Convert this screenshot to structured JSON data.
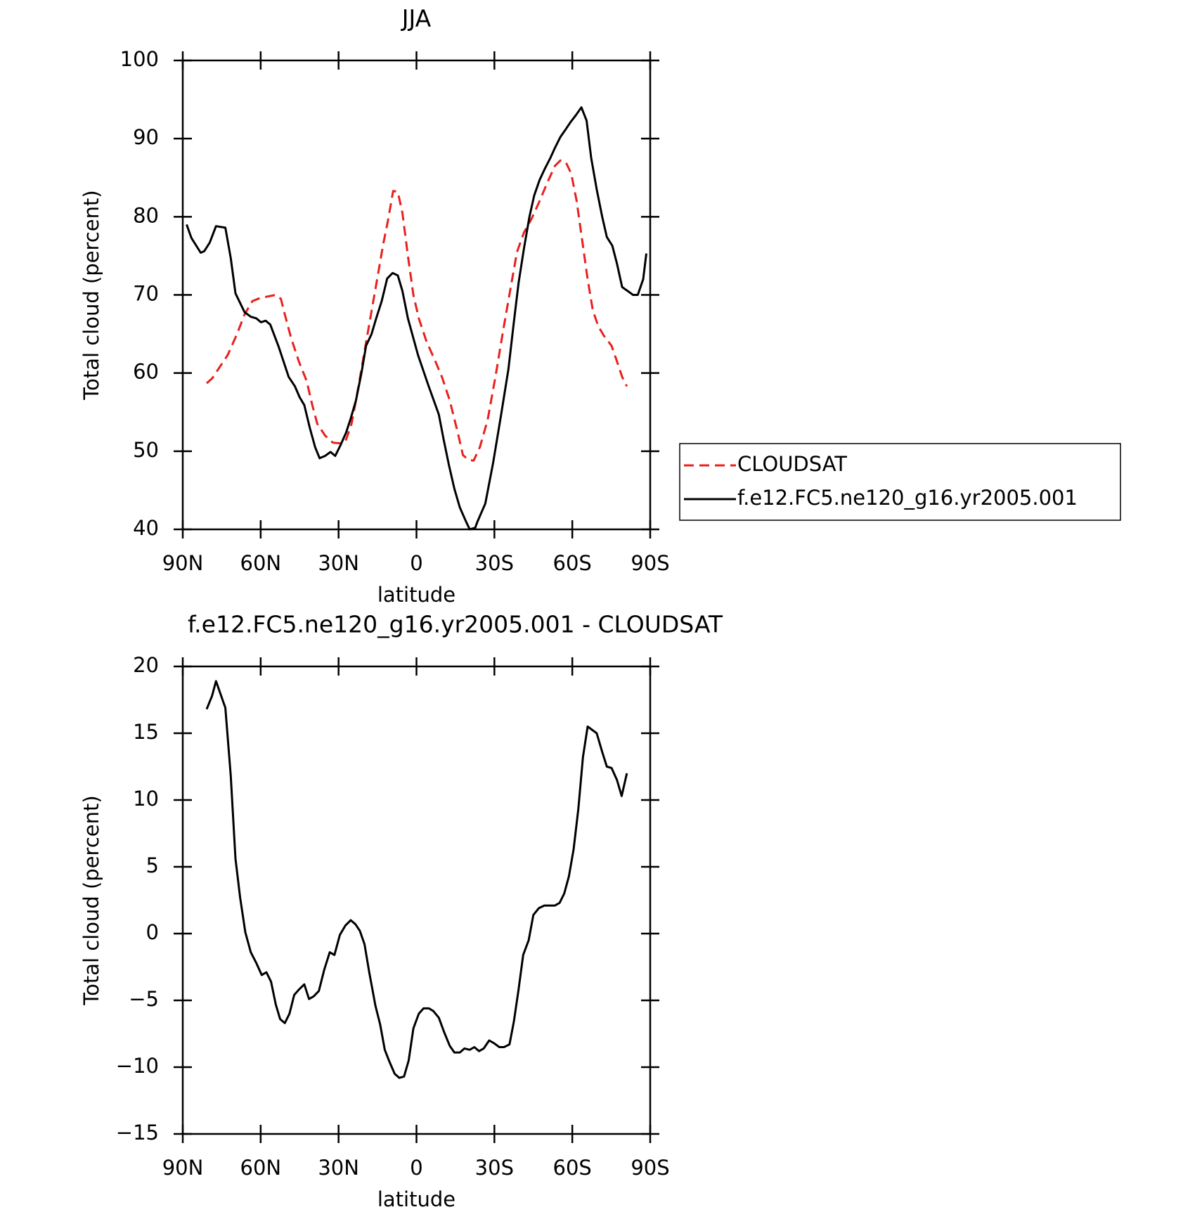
{
  "chart_data": [
    {
      "type": "line",
      "title": "JJA",
      "xlabel": "latitude",
      "ylabel": "Total cloud (percent)",
      "xlim": [
        90,
        -90
      ],
      "xticks": [
        {
          "value": 90,
          "label": "90N"
        },
        {
          "value": 60,
          "label": "60N"
        },
        {
          "value": 30,
          "label": "30N"
        },
        0,
        {
          "value": -30,
          "label": "30S"
        },
        {
          "value": -60,
          "label": "60S"
        },
        {
          "value": -90,
          "label": "90S"
        }
      ],
      "ylim": [
        40,
        100
      ],
      "yticks": [
        40,
        50,
        60,
        70,
        80,
        90,
        100
      ],
      "legend": "right",
      "series": [
        {
          "name": "CLOUDSAT",
          "color": "#e8201e",
          "dash": true,
          "x": [
            80.8,
            78.7,
            76.3,
            72.7,
            69.1,
            66.2,
            63.2,
            60.2,
            57.2,
            54.2,
            52.2,
            50.7,
            48.3,
            45.3,
            42.3,
            40.2,
            38.2,
            35.2,
            32.2,
            29.2,
            27.1,
            25.0,
            23.3,
            21.2,
            19.1,
            17.0,
            14.9,
            12.8,
            11.0,
            9.0,
            7.2,
            5.4,
            3.3,
            1.2,
            -0.9,
            -3.9,
            -6.9,
            -9.8,
            -12.8,
            -15.8,
            -17.9,
            -20.0,
            -22.0,
            -24.4,
            -27.4,
            -30.4,
            -33.4,
            -36.3,
            -38.7,
            -41.4,
            -44.4,
            -47.4,
            -50.3,
            -53.3,
            -55.4,
            -57.5,
            -59.6,
            -61.7,
            -63.8,
            -65.9,
            -67.9,
            -70.0,
            -72.1,
            -75.1,
            -77.2,
            -79.2,
            -81.0
          ],
          "values": [
            58.7,
            59.3,
            60.5,
            62.3,
            65.0,
            67.5,
            69.2,
            69.6,
            69.8,
            70.0,
            69.5,
            67.5,
            64.5,
            61.5,
            59.0,
            56.0,
            53.5,
            52.0,
            51.1,
            51.0,
            51.5,
            53.5,
            56.5,
            60.5,
            64.5,
            68.5,
            72.5,
            76.5,
            79.5,
            83.3,
            83.2,
            80.5,
            75.0,
            70.0,
            67.0,
            64.0,
            61.8,
            59.5,
            56.5,
            52.5,
            49.5,
            48.9,
            48.8,
            50.5,
            54.0,
            59.5,
            65.5,
            71.0,
            75.5,
            78.0,
            79.8,
            82.0,
            84.3,
            86.5,
            87.2,
            87.0,
            85.5,
            82.0,
            77.0,
            72.0,
            68.0,
            66.0,
            64.8,
            63.5,
            61.5,
            59.5,
            58.3
          ]
        },
        {
          "name": "f.e12.FC5.ne120_g16.yr2005.001",
          "color": "#000000",
          "dash": false,
          "x": [
            88.5,
            86.7,
            83.1,
            81.7,
            79.6,
            77.2,
            73.6,
            71.5,
            69.7,
            66.2,
            63.8,
            61.7,
            59.9,
            58.1,
            56.3,
            53.1,
            49.2,
            46.8,
            45.0,
            43.2,
            41.1,
            39.0,
            37.3,
            35.2,
            33.1,
            31.3,
            29.2,
            27.1,
            25.3,
            23.3,
            21.2,
            19.4,
            17.3,
            15.5,
            13.4,
            11.3,
            9.2,
            7.2,
            5.4,
            3.3,
            -0.6,
            -4.5,
            -8.6,
            -10.4,
            -12.5,
            -14.6,
            -16.7,
            -18.8,
            -20.5,
            -22.6,
            -23.5,
            -26.5,
            -29.5,
            -32.5,
            -35.4,
            -37.5,
            -39.3,
            -41.4,
            -43.5,
            -45.3,
            -47.4,
            -49.5,
            -51.5,
            -53.3,
            -55.4,
            -57.5,
            -59.3,
            -61.4,
            -63.5,
            -65.5,
            -67.3,
            -69.4,
            -71.5,
            -73.3,
            -75.4,
            -77.2,
            -79.2,
            -81.3,
            -83.4,
            -85.2,
            -87.3,
            -88.5
          ],
          "values": [
            79.0,
            77.3,
            75.4,
            75.6,
            76.7,
            78.8,
            78.6,
            74.7,
            70.2,
            67.8,
            67.2,
            67.0,
            66.5,
            66.7,
            66.2,
            63.4,
            59.5,
            58.3,
            56.9,
            55.9,
            53.0,
            50.5,
            49.1,
            49.4,
            49.9,
            49.4,
            50.8,
            52.4,
            54.2,
            56.5,
            60.0,
            63.5,
            65.0,
            67.0,
            69.2,
            72.1,
            72.8,
            72.5,
            70.5,
            67.0,
            62.3,
            58.5,
            54.7,
            51.6,
            48.2,
            45.2,
            42.8,
            41.2,
            40.0,
            40.2,
            41.0,
            43.3,
            48.5,
            54.5,
            60.5,
            66.5,
            71.5,
            76.0,
            80.0,
            82.7,
            84.7,
            86.2,
            87.5,
            88.8,
            90.2,
            91.2,
            92.1,
            93.0,
            94.0,
            92.3,
            87.5,
            83.5,
            80.0,
            77.4,
            76.3,
            74.0,
            71.0,
            70.5,
            70.0,
            70.0,
            72.0,
            75.3
          ]
        }
      ]
    },
    {
      "type": "line",
      "title": "f.e12.FC5.ne120_g16.yr2005.001 - CLOUDSAT",
      "xlabel": "latitude",
      "ylabel": "Total cloud (percent)",
      "xlim": [
        90,
        -90
      ],
      "xticks": [
        {
          "value": 90,
          "label": "90N"
        },
        {
          "value": 60,
          "label": "60N"
        },
        {
          "value": 30,
          "label": "30N"
        },
        0,
        {
          "value": -30,
          "label": "30S"
        },
        {
          "value": -60,
          "label": "60S"
        },
        {
          "value": -90,
          "label": "90S"
        }
      ],
      "ylim": [
        -15,
        20
      ],
      "yticks": [
        {
          "value": -15,
          "label": "−15"
        },
        {
          "value": -10,
          "label": "−10"
        },
        {
          "value": -5,
          "label": "−5"
        },
        0,
        5,
        10,
        15,
        20
      ],
      "series": [
        {
          "color": "#000000",
          "dash": false,
          "x": [
            80.8,
            78.7,
            77.2,
            73.6,
            71.5,
            69.7,
            67.9,
            65.9,
            63.8,
            61.7,
            59.6,
            57.8,
            56.0,
            54.2,
            52.5,
            50.7,
            48.9,
            47.1,
            45.3,
            43.2,
            41.4,
            39.6,
            37.6,
            35.5,
            33.4,
            31.6,
            29.5,
            27.4,
            25.3,
            23.5,
            21.8,
            20.0,
            18.2,
            15.8,
            14.0,
            12.2,
            10.4,
            8.4,
            6.6,
            4.8,
            3.0,
            1.2,
            -0.9,
            -2.7,
            -4.8,
            -6.5,
            -8.6,
            -10.7,
            -12.8,
            -14.6,
            -16.7,
            -18.5,
            -20.5,
            -22.3,
            -24.1,
            -25.9,
            -28.0,
            -29.8,
            -31.9,
            -33.7,
            -35.8,
            -37.5,
            -39.3,
            -41.1,
            -43.2,
            -45.0,
            -47.1,
            -49.2,
            -51.2,
            -53.3,
            -55.1,
            -56.9,
            -58.7,
            -60.5,
            -62.3,
            -64.1,
            -65.9,
            -69.4,
            -71.5,
            -73.3,
            -75.1,
            -77.2,
            -79.0,
            -81.0
          ],
          "values": [
            16.8,
            17.8,
            18.9,
            16.9,
            11.8,
            5.6,
            2.7,
            0.1,
            -1.4,
            -2.2,
            -3.1,
            -2.9,
            -3.6,
            -5.3,
            -6.4,
            -6.7,
            -6.0,
            -4.6,
            -4.2,
            -3.8,
            -4.9,
            -4.7,
            -4.3,
            -2.7,
            -1.4,
            -1.6,
            -0.1,
            0.6,
            1.0,
            0.7,
            0.2,
            -0.8,
            -2.9,
            -5.4,
            -6.8,
            -8.7,
            -9.6,
            -10.5,
            -10.8,
            -10.7,
            -9.5,
            -7.1,
            -6.0,
            -5.6,
            -5.6,
            -5.8,
            -6.3,
            -7.4,
            -8.4,
            -8.9,
            -8.9,
            -8.6,
            -8.7,
            -8.5,
            -8.8,
            -8.6,
            -8.0,
            -8.2,
            -8.5,
            -8.5,
            -8.3,
            -6.6,
            -4.2,
            -1.6,
            -0.5,
            1.4,
            1.9,
            2.1,
            2.1,
            2.1,
            2.3,
            3.0,
            4.3,
            6.3,
            9.3,
            13.2,
            15.5,
            15.0,
            13.6,
            12.5,
            12.4,
            11.5,
            10.3,
            12.0
          ]
        }
      ]
    }
  ]
}
